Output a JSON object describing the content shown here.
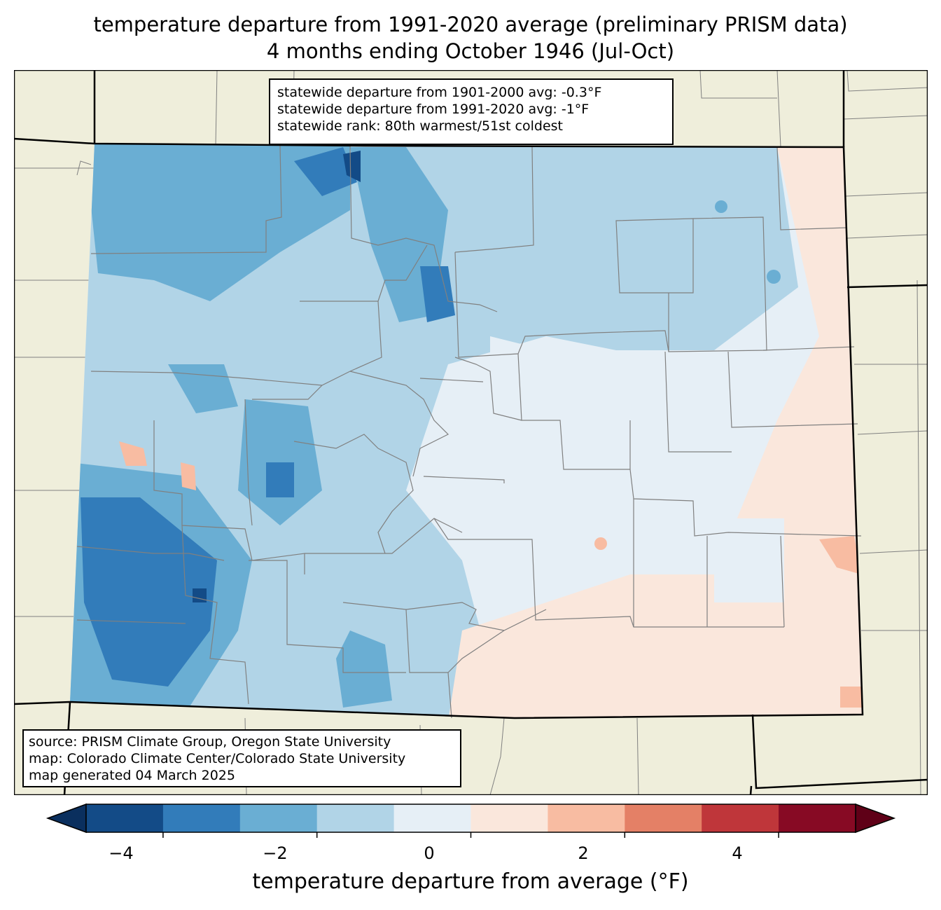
{
  "title": {
    "line1": "temperature departure from 1991-2020 average (preliminary PRISM data)",
    "line2": "4 months ending October 1946 (Jul-Oct)"
  },
  "stats": {
    "line1": "statewide departure from 1901-2000 avg: -0.3°F",
    "line2": "statewide departure from 1991-2020 avg: -1°F",
    "line3": "statewide rank: 80th warmest/51st coldest"
  },
  "source": {
    "line1": "source: PRISM Climate Group, Oregon State University",
    "line2": "map: Colorado Climate Center/Colorado State University",
    "line3": "map generated 04 March 2025"
  },
  "colorbar": {
    "label": "temperature departure from average (°F)",
    "ticks": [
      "−4",
      "−2",
      "0",
      "2",
      "4"
    ],
    "tick_values": [
      -4,
      -2,
      0,
      2,
      4
    ],
    "range": [
      -5,
      5
    ],
    "colors": [
      "#134b87",
      "#327cba",
      "#6aaed3",
      "#b1d4e7",
      "#e6eff6",
      "#fae7dc",
      "#f8bca2",
      "#e48066",
      "#bf363a",
      "#870a24"
    ],
    "under_color": "#0a2f5e",
    "over_color": "#5f0017"
  },
  "map_colors": {
    "land": "#efeedb",
    "county_border": "#808080",
    "state_border": "#000000"
  }
}
